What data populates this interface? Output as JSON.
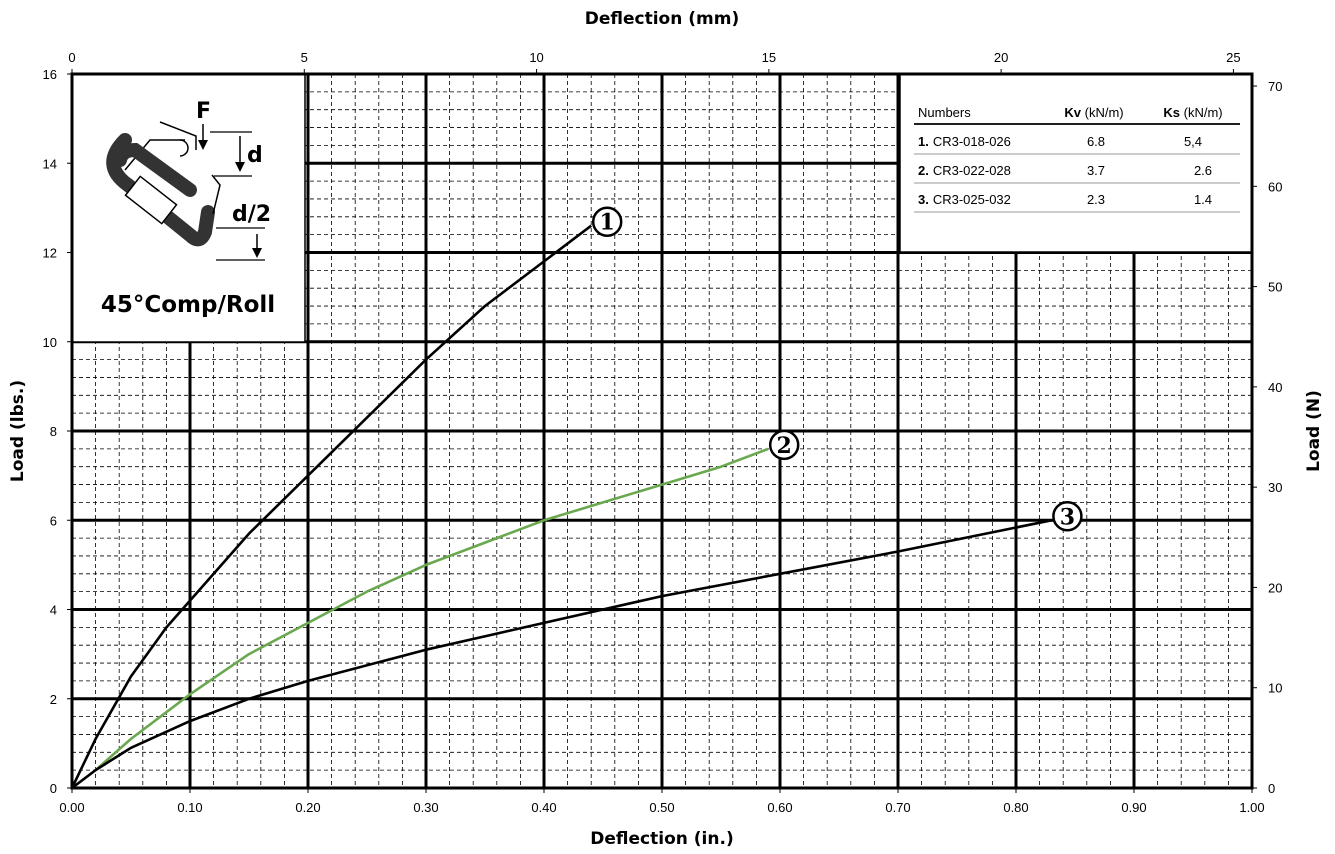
{
  "chart_data": {
    "type": "line",
    "title": "",
    "xlabel": "Deflection (in.)",
    "ylabel": "Load (lbs.)",
    "x2label": "Deflection (mm)",
    "y2label": "Load (N)",
    "xlim": [
      0,
      1.0
    ],
    "ylim": [
      0,
      16
    ],
    "x2lim": [
      0,
      25.4
    ],
    "y2lim": [
      0,
      71.2
    ],
    "xticks": [
      "0.00",
      "0.10",
      "0.20",
      "0.30",
      "0.40",
      "0.50",
      "0.60",
      "0.70",
      "0.80",
      "0.90",
      "1.00"
    ],
    "yticks": [
      "0",
      "2",
      "4",
      "6",
      "8",
      "10",
      "12",
      "14",
      "16"
    ],
    "x2ticks": [
      "0",
      "5",
      "10",
      "15",
      "20",
      "25"
    ],
    "y2ticks": [
      "0",
      "10",
      "20",
      "30",
      "40",
      "50",
      "60",
      "70"
    ],
    "grid": true,
    "series": [
      {
        "name": "1",
        "color": "#000000",
        "x": [
          0,
          0.02,
          0.05,
          0.08,
          0.1,
          0.15,
          0.2,
          0.25,
          0.3,
          0.35,
          0.4,
          0.44
        ],
        "y": [
          0,
          1.1,
          2.5,
          3.6,
          4.2,
          5.7,
          7.0,
          8.3,
          9.6,
          10.8,
          11.8,
          12.6
        ]
      },
      {
        "name": "2",
        "color": "#6aa84f",
        "x": [
          0,
          0.02,
          0.05,
          0.1,
          0.15,
          0.2,
          0.25,
          0.3,
          0.35,
          0.4,
          0.45,
          0.5,
          0.55,
          0.59
        ],
        "y": [
          0,
          0.4,
          1.1,
          2.1,
          3.0,
          3.7,
          4.4,
          5.0,
          5.5,
          6.0,
          6.4,
          6.8,
          7.2,
          7.6
        ]
      },
      {
        "name": "3",
        "color": "#000000",
        "x": [
          0,
          0.02,
          0.05,
          0.1,
          0.15,
          0.2,
          0.3,
          0.4,
          0.5,
          0.6,
          0.7,
          0.83
        ],
        "y": [
          0,
          0.4,
          0.9,
          1.5,
          2.0,
          2.4,
          3.1,
          3.7,
          4.3,
          4.8,
          5.3,
          6.0
        ]
      }
    ]
  },
  "markers": [
    "1",
    "2",
    "3"
  ],
  "inset": {
    "title": "45°Comp/Roll",
    "force_label": "F",
    "d_label": "d",
    "d2_label": "d/2"
  },
  "legend": {
    "headers": [
      "Numbers",
      "Kv (kN/m)",
      "Ks (kN/m)"
    ],
    "header_bold_parts": [
      "",
      "Kv",
      "Ks"
    ],
    "header_rest_parts": [
      "Numbers",
      " (kN/m)",
      " (kN/m)"
    ],
    "rows": [
      {
        "num": "1.",
        "part": "CR3-018-026",
        "kv": "6.8",
        "ks": "5,4"
      },
      {
        "num": "2.",
        "part": "CR3-022-028",
        "kv": "3.7",
        "ks": "2.6"
      },
      {
        "num": "3.",
        "part": "CR3-025-032",
        "kv": "2.3",
        "ks": "1.4"
      }
    ]
  }
}
